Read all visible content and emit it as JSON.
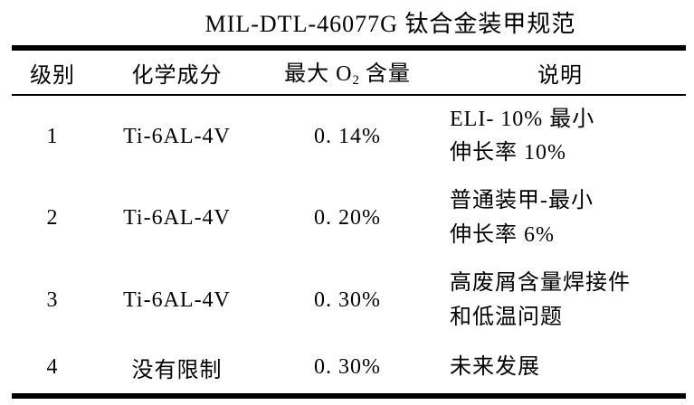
{
  "title": "MIL-DTL-46077G 钛合金装甲规范",
  "colors": {
    "text": "#000000",
    "rule": "#000000",
    "background": "#ffffff"
  },
  "table": {
    "headers": {
      "grade": "级别",
      "composition": "化学成分",
      "o2_pre": "最大 O",
      "o2_sub": "2",
      "o2_post": " 含量",
      "description": "说明"
    },
    "rows": [
      {
        "grade": "1",
        "composition": "Ti-6AL-4V",
        "max_o2": "0. 14%",
        "description": "ELI- 10% 最小\n伸长率 10%"
      },
      {
        "grade": "2",
        "composition": "Ti-6AL-4V",
        "max_o2": "0. 20%",
        "description": "普通装甲-最小\n伸长率 6%"
      },
      {
        "grade": "3",
        "composition": "Ti-6AL-4V",
        "max_o2": "0. 30%",
        "description": "高废屑含量焊接件\n和低温问题"
      },
      {
        "grade": "4",
        "composition": "没有限制",
        "max_o2": "0. 30%",
        "description": "未来发展"
      }
    ]
  }
}
